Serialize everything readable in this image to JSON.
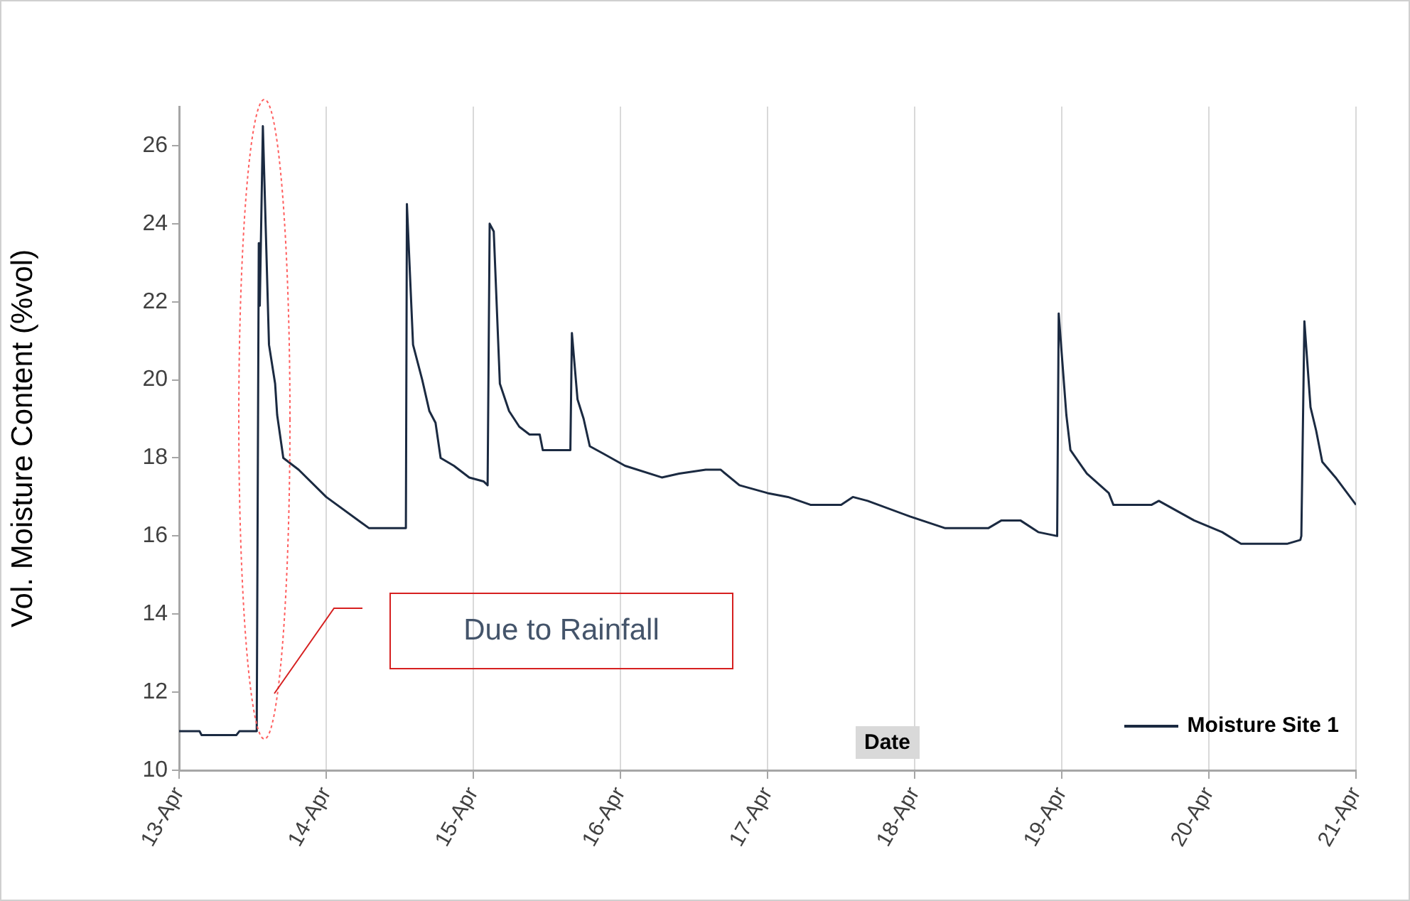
{
  "chart_data": {
    "type": "line",
    "xlabel": "Date",
    "ylabel": "Vol. Moisture Content (%vol)",
    "annotations": [
      "Due to Rainfall"
    ],
    "xlim": [
      "--04-13",
      "--04-21"
    ],
    "xticks": [
      {
        "value": "--04-13",
        "label": "13-Apr"
      },
      {
        "value": "--04-14",
        "label": "14-Apr"
      },
      {
        "value": "--04-15",
        "label": "15-Apr"
      },
      {
        "value": "--04-16",
        "label": "16-Apr"
      },
      {
        "value": "--04-17",
        "label": "17-Apr"
      },
      {
        "value": "--04-18",
        "label": "18-Apr"
      },
      {
        "value": "--04-19",
        "label": "19-Apr"
      },
      {
        "value": "--04-20",
        "label": "20-Apr"
      },
      {
        "value": "--04-21",
        "label": "21-Apr"
      }
    ],
    "ylim": [
      10,
      27
    ],
    "yticks": [
      10,
      12,
      14,
      16,
      18,
      20,
      22,
      24,
      26
    ],
    "grid": "x",
    "legend": "bottom right",
    "marker": "none",
    "line_style": "solid",
    "series": [
      {
        "name": "Moisture Site 1",
        "color": "#1b2a41",
        "x": [
          "--04-13T00:00",
          "--04-13T03:20",
          "--04-13T03:40",
          "--04-13T09:20",
          "--04-13T09:50",
          "--04-13T12:40",
          "--04-13T13:00",
          "--04-13T13:10",
          "--04-13T13:40",
          "--04-13T14:40",
          "--04-13T15:40",
          "--04-13T16:00",
          "--04-13T17:00",
          "--04-13T19:30",
          "--04-14T00:00",
          "--04-14T07:00",
          "--04-14T13:00",
          "--04-14T13:10",
          "--04-14T14:10",
          "--04-14T15:40",
          "--04-14T16:50",
          "--04-14T17:50",
          "--04-14T18:40",
          "--04-14T20:50",
          "--04-14T23:20",
          "--04-15T01:40",
          "--04-15T02:20",
          "--04-15T02:40",
          "--04-15T03:20",
          "--04-15T04:20",
          "--04-15T05:50",
          "--04-15T07:30",
          "--04-15T09:10",
          "--04-15T10:50",
          "--04-15T11:20",
          "--04-15T15:50",
          "--04-15T16:05",
          "--04-15T17:00",
          "--04-15T18:00",
          "--04-15T19:00",
          "--04-15T21:20",
          "--04-16T00:45",
          "--04-16T06:45",
          "--04-16T09:35",
          "--04-16T13:55",
          "--04-16T16:20",
          "--04-16T19:25",
          "--04-17T00:00",
          "--04-17T03:20",
          "--04-17T07:00",
          "--04-17T12:00",
          "--04-17T13:55",
          "--04-17T16:20",
          "--04-17T23:15",
          "--04-18T05:00",
          "--04-18T12:00",
          "--04-18T14:10",
          "--04-18T17:15",
          "--04-18T20:10",
          "--04-18T23:15",
          "--04-18T23:30",
          "--04-19T00:45",
          "--04-19T01:25",
          "--04-19T04:05",
          "--04-19T07:40",
          "--04-19T08:25",
          "--04-19T14:40",
          "--04-19T15:50",
          "--04-19T21:35",
          "--04-20T02:10",
          "--04-20T05:15",
          "--04-20T12:45",
          "--04-20T14:55",
          "--04-20T15:05",
          "--04-20T15:35",
          "--04-20T16:35",
          "--04-20T17:30",
          "--04-20T18:30",
          "--04-20T20:40",
          "--04-21T00:00"
        ],
        "values": [
          11.0,
          11.0,
          10.9,
          10.9,
          11.0,
          11.0,
          23.5,
          21.9,
          26.5,
          20.9,
          19.9,
          19.1,
          18.0,
          17.7,
          17.0,
          16.2,
          16.2,
          24.5,
          20.9,
          20.0,
          19.2,
          18.9,
          18.0,
          17.8,
          17.5,
          17.4,
          17.3,
          24.0,
          23.8,
          19.9,
          19.2,
          18.8,
          18.6,
          18.6,
          18.2,
          18.2,
          21.2,
          19.5,
          19.0,
          18.3,
          18.1,
          17.8,
          17.5,
          17.6,
          17.7,
          17.7,
          17.3,
          17.1,
          17.0,
          16.8,
          16.8,
          17.0,
          16.9,
          16.5,
          16.2,
          16.2,
          16.4,
          16.4,
          16.1,
          16.0,
          21.7,
          19.1,
          18.2,
          17.6,
          17.1,
          16.8,
          16.8,
          16.9,
          16.4,
          16.1,
          15.8,
          15.8,
          15.9,
          16.0,
          21.5,
          19.3,
          18.7,
          17.9,
          17.5,
          16.8
        ]
      }
    ]
  }
}
